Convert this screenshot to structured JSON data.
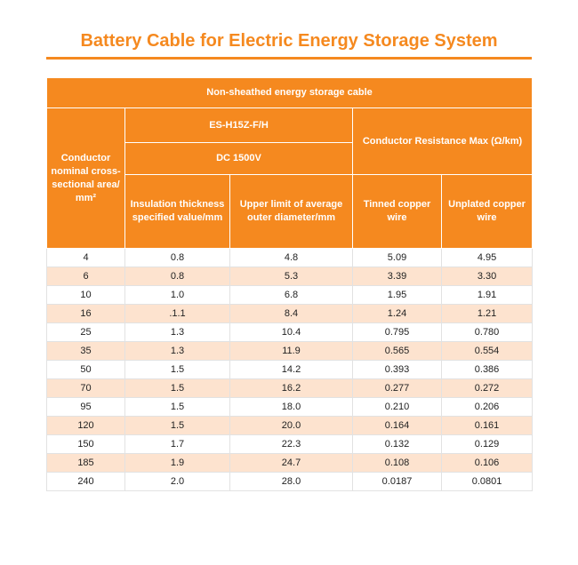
{
  "page": {
    "title": "Battery Cable for Electric Energy Storage System"
  },
  "table": {
    "caption": "Non-sheathed energy storage cable",
    "headers": {
      "conductor": "Conductor nominal cross-sectional area/ mm²",
      "model": "ES-H15Z-F/H",
      "voltage": "DC 1500V",
      "resistance_group": "Conductor Resistance Max (Ω/km)",
      "insulation": "Insulation thickness specified value/mm",
      "outer_diameter": "Upper limit of average outer diameter/mm",
      "tinned": "Tinned copper wire",
      "unplated": "Unplated copper wire"
    },
    "rows": [
      [
        "4",
        "0.8",
        "4.8",
        "5.09",
        "4.95"
      ],
      [
        "6",
        "0.8",
        "5.3",
        "3.39",
        "3.30"
      ],
      [
        "10",
        "1.0",
        "6.8",
        "1.95",
        "1.91"
      ],
      [
        "16",
        ".1.1",
        "8.4",
        "1.24",
        "1.21"
      ],
      [
        "25",
        "1.3",
        "10.4",
        "0.795",
        "0.780"
      ],
      [
        "35",
        "1.3",
        "11.9",
        "0.565",
        "0.554"
      ],
      [
        "50",
        "1.5",
        "14.2",
        "0.393",
        "0.386"
      ],
      [
        "70",
        "1.5",
        "16.2",
        "0.277",
        "0.272"
      ],
      [
        "95",
        "1.5",
        "18.0",
        "0.210",
        "0.206"
      ],
      [
        "120",
        "1.5",
        "20.0",
        "0.164",
        "0.161"
      ],
      [
        "150",
        "1.7",
        "22.3",
        "0.132",
        "0.129"
      ],
      [
        "185",
        "1.9",
        "24.7",
        "0.108",
        "0.106"
      ],
      [
        "240",
        "2.0",
        "28.0",
        "0.0187",
        "0.0801"
      ]
    ]
  },
  "colors": {
    "accent": "#f5891f",
    "stripe": "#fde3cf",
    "text": "#222222"
  }
}
